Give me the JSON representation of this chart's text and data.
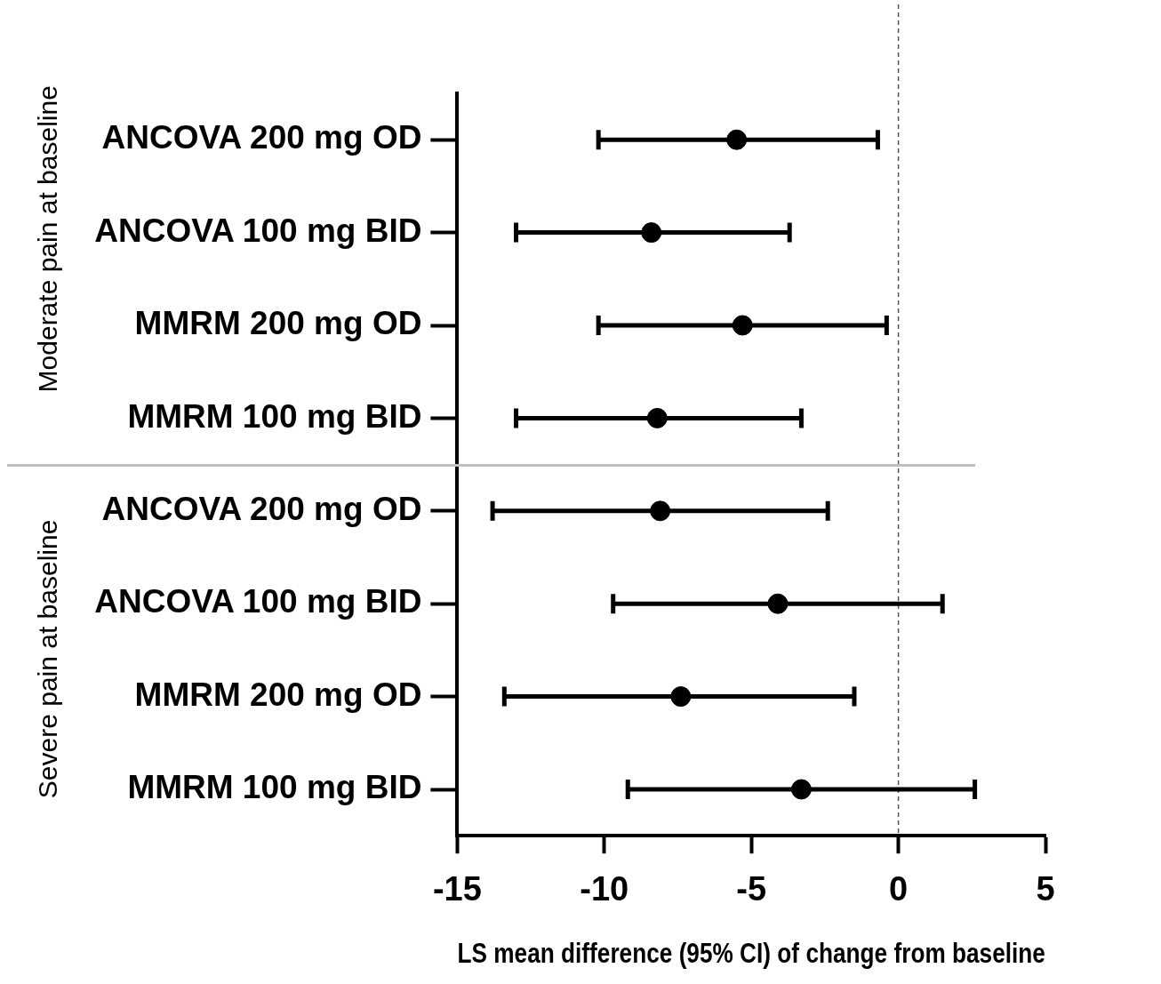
{
  "chart_data": {
    "type": "scatter",
    "orientation": "horizontal",
    "xlabel": "LS mean difference (95% CI) of change from baseline",
    "categories": [
      "ANCOVA 200 mg OD",
      "ANCOVA 100 mg BID",
      "MMRM 200 mg OD",
      "MMRM 100 mg BID",
      "ANCOVA 200 mg OD",
      "ANCOVA 100 mg BID",
      "MMRM 200 mg OD",
      "MMRM 100 mg BID"
    ],
    "values": [
      -5.5,
      -8.4,
      -5.3,
      -8.2,
      -8.1,
      -4.1,
      -7.4,
      -3.3
    ],
    "errors": [
      [
        -10.2,
        -0.7
      ],
      [
        -13.0,
        -3.7
      ],
      [
        -10.2,
        -0.4
      ],
      [
        -13.0,
        -3.3
      ],
      [
        -13.8,
        -2.4
      ],
      [
        -9.7,
        1.5
      ],
      [
        -13.4,
        -1.5
      ],
      [
        -9.2,
        2.6
      ]
    ],
    "color": "#000000",
    "marker": "circle",
    "grid": false,
    "legend": false,
    "xlim": [
      -15,
      5
    ],
    "xticks": [
      -15,
      -10,
      -5,
      0,
      5
    ],
    "ref_lines": [
      {
        "axis": "x",
        "value": 0,
        "line_style": "dashed",
        "color": "#555555"
      }
    ],
    "annotations": [
      "Moderate pain at baseline",
      "Severe pain at baseline"
    ]
  }
}
